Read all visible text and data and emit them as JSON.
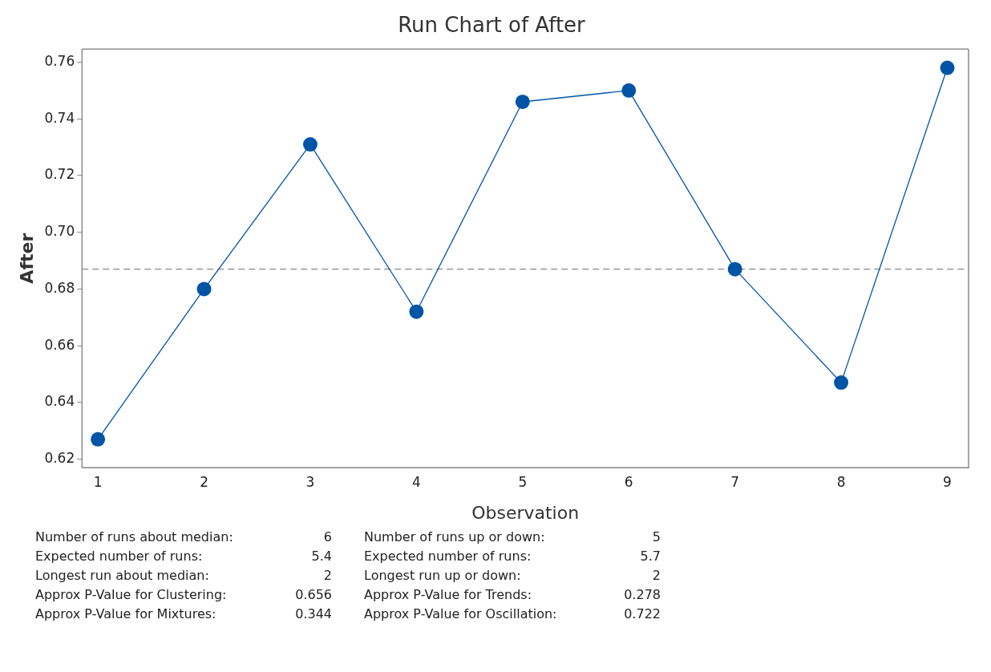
{
  "chart_data": {
    "type": "line",
    "title": "Run Chart of After",
    "xlabel": "Observation",
    "ylabel": "After",
    "x": [
      1,
      2,
      3,
      4,
      5,
      6,
      7,
      8,
      9
    ],
    "series": [
      {
        "color": "#0054a6",
        "values": [
          0.627,
          0.68,
          0.731,
          0.672,
          0.746,
          0.75,
          0.687,
          0.647,
          0.758
        ]
      }
    ],
    "xlim": [
      0.85,
      9.2
    ],
    "xticks": [
      1,
      2,
      3,
      4,
      5,
      6,
      7,
      8,
      9
    ],
    "ylim": [
      0.617,
      0.7646
    ],
    "yticks": [
      {
        "value": 0.62,
        "label": "0.62"
      },
      {
        "value": 0.64,
        "label": "0.64"
      },
      {
        "value": 0.66,
        "label": "0.66"
      },
      {
        "value": 0.68,
        "label": "0.68"
      },
      {
        "value": 0.7,
        "label": "0.70"
      },
      {
        "value": 0.72,
        "label": "0.72"
      },
      {
        "value": 0.74,
        "label": "0.74"
      },
      {
        "value": 0.76,
        "label": "0.76"
      }
    ],
    "ref_lines": [
      {
        "axis": "y",
        "value": 0.687,
        "color": "#888888",
        "line_style": "dashed"
      }
    ],
    "grid": false,
    "legend": false,
    "marker": "circle",
    "line_style": "solid",
    "annotations": [
      "Number of runs about median:",
      "6",
      "Number of runs up or down:",
      "5",
      "Expected number of runs:",
      "5.4",
      "Expected number of runs:",
      "5.7",
      "Longest run about median:",
      "2",
      "Longest run up or down:",
      "2",
      "Approx P-Value for Clustering:",
      "0.656",
      "Approx P-Value for Trends:",
      "0.278",
      "Approx P-Value for Mixtures:",
      "0.344",
      "Approx P-Value for Oscillation:",
      "0.722"
    ]
  }
}
